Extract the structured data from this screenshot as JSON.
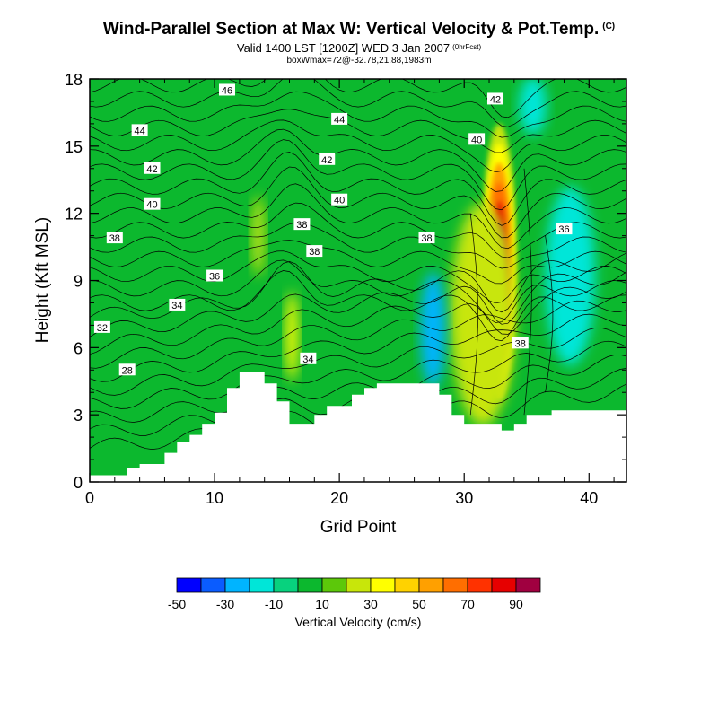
{
  "header": {
    "title": "Wind-Parallel Section at Max W: Vertical Velocity & Pot.Temp.",
    "title_mark": "(C)",
    "subtitle": "Valid 1400 LST [1200Z] WED 3 Jan 2007",
    "subtitle_fcst": "(0hrFcst)",
    "subtitle2": "boxWmax=72@-32.78,21.88,1983m"
  },
  "chart_data": {
    "type": "heatmap",
    "xlabel": "Grid Point",
    "ylabel": "Height (Kft MSL)",
    "xlim": [
      0,
      43
    ],
    "ylim": [
      0,
      18
    ],
    "x_ticks": [
      0,
      10,
      20,
      30,
      40
    ],
    "y_ticks": [
      0,
      3,
      6,
      9,
      12,
      15,
      18
    ],
    "colorbar": {
      "title": "Vertical Velocity (cm/s)",
      "tick_labels": [
        "-50",
        "-30",
        "-10",
        "10",
        "30",
        "50",
        "70",
        "90"
      ],
      "levels": [
        -50,
        -40,
        -30,
        -20,
        -10,
        0,
        10,
        20,
        30,
        40,
        50,
        60,
        70,
        80,
        90,
        100
      ],
      "colors": [
        "#0000ff",
        "#0a5cff",
        "#00b4ff",
        "#00e6d8",
        "#08d27e",
        "#0cb82e",
        "#5cc80a",
        "#c8e60a",
        "#ffff00",
        "#ffd200",
        "#ffa000",
        "#ff6e00",
        "#ff3200",
        "#e60000",
        "#a00040"
      ]
    },
    "terrain": [
      [
        0,
        0.3
      ],
      [
        3,
        0.3
      ],
      [
        3,
        0.6
      ],
      [
        4,
        0.6
      ],
      [
        4,
        0.8
      ],
      [
        6,
        0.8
      ],
      [
        6,
        1.3
      ],
      [
        7,
        1.3
      ],
      [
        7,
        1.8
      ],
      [
        8,
        1.8
      ],
      [
        8,
        2.1
      ],
      [
        9,
        2.1
      ],
      [
        9,
        2.6
      ],
      [
        10,
        2.6
      ],
      [
        10,
        3.1
      ],
      [
        11,
        3.1
      ],
      [
        11,
        4.2
      ],
      [
        12,
        4.2
      ],
      [
        12,
        4.9
      ],
      [
        14,
        4.9
      ],
      [
        14,
        4.4
      ],
      [
        15,
        4.4
      ],
      [
        15,
        3.6
      ],
      [
        16,
        3.6
      ],
      [
        16,
        2.6
      ],
      [
        18,
        2.6
      ],
      [
        18,
        3.0
      ],
      [
        19,
        3.0
      ],
      [
        19,
        3.4
      ],
      [
        21,
        3.4
      ],
      [
        21,
        3.9
      ],
      [
        22,
        3.9
      ],
      [
        22,
        4.2
      ],
      [
        23,
        4.2
      ],
      [
        23,
        4.4
      ],
      [
        28,
        4.4
      ],
      [
        28,
        3.9
      ],
      [
        29,
        3.9
      ],
      [
        29,
        3.0
      ],
      [
        30,
        3.0
      ],
      [
        30,
        2.6
      ],
      [
        33,
        2.6
      ],
      [
        33,
        2.3
      ],
      [
        34,
        2.3
      ],
      [
        34,
        2.6
      ],
      [
        35,
        2.6
      ],
      [
        35,
        3.0
      ],
      [
        37,
        3.0
      ],
      [
        37,
        3.2
      ],
      [
        43,
        3.2
      ]
    ],
    "velocity_regions": [
      {
        "label": "updraft core",
        "x": 32.8,
        "y": 9.8,
        "rx": 1.4,
        "ry": 6.2,
        "value": 95
      },
      {
        "label": "updraft",
        "x": 31.5,
        "y": 7.5,
        "rx": 2.6,
        "ry": 5.0,
        "value": 25
      },
      {
        "label": "updraft",
        "x": 16.2,
        "y": 6.5,
        "rx": 0.5,
        "ry": 2.0,
        "value": 35
      },
      {
        "label": "updraft",
        "x": 13.5,
        "y": 11.0,
        "rx": 0.5,
        "ry": 1.8,
        "value": 20
      },
      {
        "label": "downdraft",
        "x": 38.5,
        "y": 9.2,
        "rx": 2.0,
        "ry": 4.0,
        "value": -15
      },
      {
        "label": "downdraft",
        "x": 27.5,
        "y": 6.8,
        "rx": 1.0,
        "ry": 2.6,
        "value": -22
      },
      {
        "label": "downdraft",
        "x": 35.5,
        "y": 16.8,
        "rx": 1.1,
        "ry": 1.3,
        "value": -20
      }
    ],
    "theta_labels": [
      {
        "text": "46",
        "x": 11.0,
        "y": 17.5
      },
      {
        "text": "44",
        "x": 4.0,
        "y": 15.7
      },
      {
        "text": "42",
        "x": 5.0,
        "y": 14.0
      },
      {
        "text": "40",
        "x": 5.0,
        "y": 12.4
      },
      {
        "text": "38",
        "x": 2.0,
        "y": 10.9
      },
      {
        "text": "36",
        "x": 10.0,
        "y": 9.2
      },
      {
        "text": "34",
        "x": 7.0,
        "y": 7.9
      },
      {
        "text": "32",
        "x": 1.0,
        "y": 6.9
      },
      {
        "text": "28",
        "x": 3.0,
        "y": 5.0
      },
      {
        "text": "44",
        "x": 20.0,
        "y": 16.2
      },
      {
        "text": "42",
        "x": 19.0,
        "y": 14.4
      },
      {
        "text": "40",
        "x": 20.0,
        "y": 12.6
      },
      {
        "text": "38",
        "x": 17.0,
        "y": 11.5
      },
      {
        "text": "38",
        "x": 18.0,
        "y": 10.3
      },
      {
        "text": "38",
        "x": 27.0,
        "y": 10.9
      },
      {
        "text": "34",
        "x": 17.5,
        "y": 5.5
      },
      {
        "text": "42",
        "x": 32.5,
        "y": 17.1
      },
      {
        "text": "40",
        "x": 31.0,
        "y": 15.3
      },
      {
        "text": "36",
        "x": 38.0,
        "y": 11.3
      },
      {
        "text": "38",
        "x": 34.5,
        "y": 6.2
      }
    ]
  }
}
